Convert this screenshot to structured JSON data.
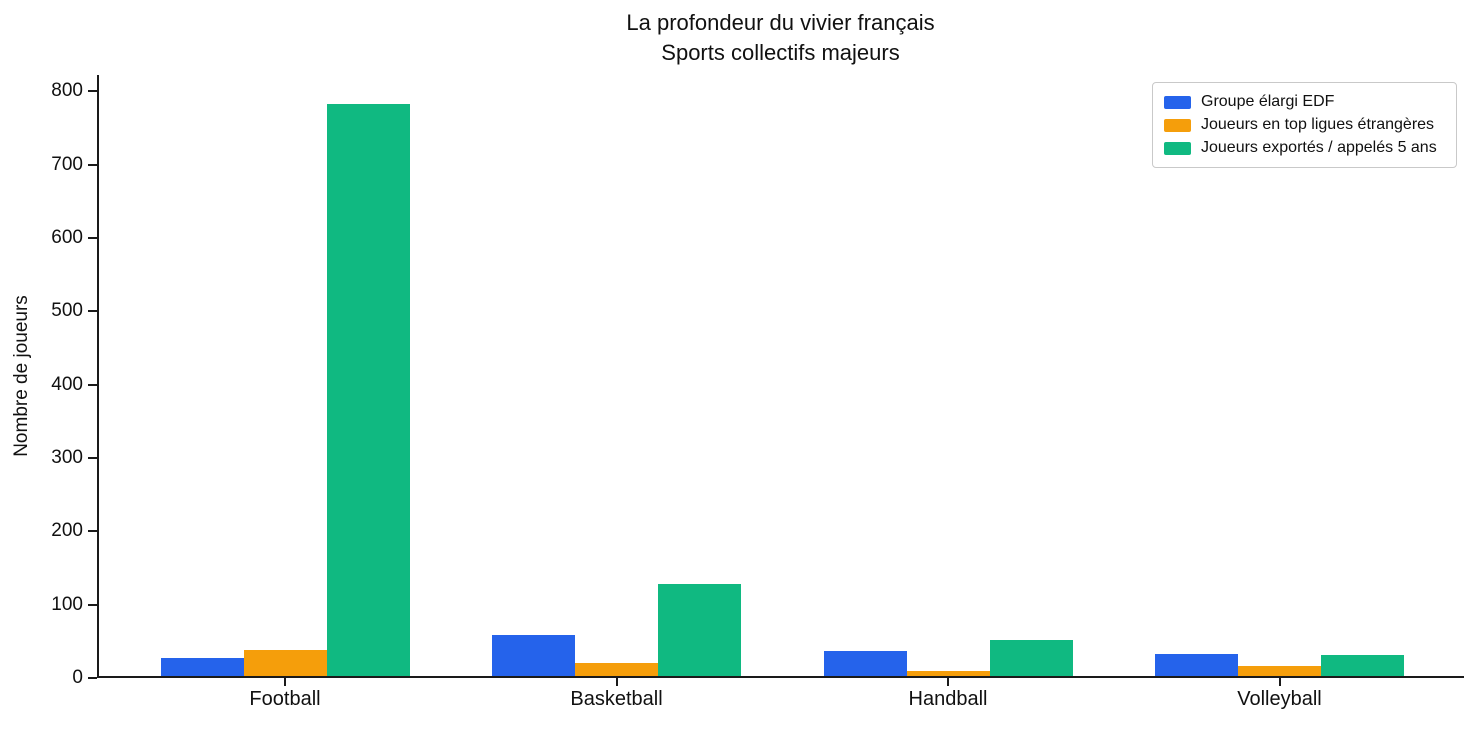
{
  "title": {
    "line1": "La profondeur du vivier français",
    "line2": "Sports collectifs majeurs"
  },
  "chart_data": {
    "type": "bar",
    "title": "La profondeur du vivier français",
    "subtitle": "Sports collectifs majeurs",
    "categories": [
      "Football",
      "Basketball",
      "Handball",
      "Volleyball"
    ],
    "series": [
      {
        "name": "Groupe élargi EDF",
        "color": "#2563eb",
        "values": [
          25,
          56,
          34,
          30
        ]
      },
      {
        "name": "Joueurs en top ligues étrangères",
        "color": "#f59e0b",
        "values": [
          36,
          18,
          7,
          14
        ]
      },
      {
        "name": "Joueurs exportés / appelés 5 ans",
        "color": "#10b981",
        "values": [
          780,
          126,
          49,
          29
        ]
      }
    ],
    "xlabel": "",
    "ylabel": "Nombre de joueurs",
    "ylim": [
      0,
      800
    ],
    "yticks": [
      0,
      100,
      200,
      300,
      400,
      500,
      600,
      700,
      800
    ],
    "legend_position": "upper right",
    "grid": false,
    "bar_edge_color": "#ffffff"
  }
}
